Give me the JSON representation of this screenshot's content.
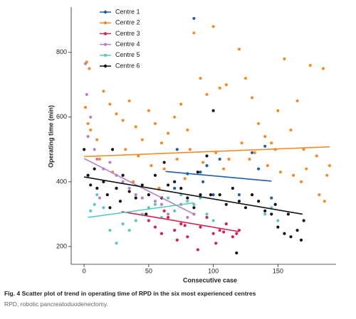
{
  "chart_data": {
    "type": "scatter",
    "x_label": "Consecutive case",
    "y_label": "Operating time (min)",
    "xlim": [
      -10,
      195
    ],
    "ylim": [
      145,
      940
    ],
    "xticks": [
      0,
      50,
      100,
      150
    ],
    "yticks": [
      200,
      400,
      600,
      800
    ],
    "legend": "top-left",
    "series": [
      {
        "name": "Centre 1",
        "color": "#1f5fa8",
        "x": [
          85,
          72,
          80,
          90,
          92,
          100,
          105,
          130,
          140,
          135,
          120,
          145,
          70,
          95
        ],
        "values": [
          905,
          500,
          425,
          430,
          400,
          360,
          470,
          490,
          510,
          440,
          360,
          350,
          380,
          450
        ],
        "trend_x": [
          63,
          145
        ],
        "trend_y": [
          432,
          402
        ]
      },
      {
        "name": "Centre 2",
        "color": "#f28c28",
        "x": [
          2,
          4,
          1,
          3,
          5,
          10,
          15,
          20,
          25,
          30,
          35,
          40,
          45,
          50,
          55,
          60,
          65,
          70,
          75,
          80,
          85,
          90,
          95,
          100,
          105,
          110,
          120,
          125,
          130,
          135,
          140,
          145,
          150,
          155,
          160,
          165,
          170,
          175,
          180,
          185,
          188,
          190,
          12,
          22,
          32,
          42,
          52,
          62,
          72,
          82,
          92,
          102,
          112,
          122,
          132,
          142,
          152,
          162,
          172,
          182,
          186,
          38,
          58,
          78,
          108,
          128,
          148,
          168
        ],
        "values": [
          770,
          750,
          630,
          580,
          560,
          530,
          680,
          640,
          610,
          590,
          650,
          570,
          530,
          620,
          580,
          520,
          550,
          600,
          640,
          560,
          860,
          720,
          670,
          880,
          690,
          700,
          810,
          720,
          660,
          580,
          540,
          520,
          620,
          780,
          560,
          650,
          500,
          760,
          480,
          750,
          420,
          450,
          470,
          430,
          500,
          480,
          450,
          440,
          470,
          500,
          460,
          490,
          470,
          520,
          490,
          450,
          430,
          420,
          440,
          360,
          340,
          400,
          380,
          410,
          440,
          470,
          500,
          400
        ],
        "trend_x": [
          0,
          190
        ],
        "trend_y": [
          478,
          508
        ]
      },
      {
        "name": "Centre 3",
        "color": "#d6204f",
        "x": [
          50,
          55,
          60,
          65,
          70,
          75,
          80,
          85,
          90,
          95,
          100,
          105,
          110,
          115,
          120,
          118,
          72,
          88,
          62,
          102,
          108,
          78
        ],
        "values": [
          280,
          260,
          240,
          290,
          250,
          270,
          230,
          300,
          260,
          290,
          240,
          250,
          270,
          230,
          250,
          240,
          220,
          190,
          310,
          210,
          245,
          265
        ],
        "trend_x": [
          29,
          120
        ],
        "trend_y": [
          308,
          246
        ]
      },
      {
        "name": "Centre 4",
        "color": "#b57fc8",
        "x": [
          1,
          2,
          5,
          3,
          8,
          10,
          15,
          20,
          25,
          30,
          35,
          40,
          45,
          55,
          60,
          65,
          75,
          80,
          85,
          12
        ],
        "values": [
          765,
          670,
          600,
          540,
          500,
          470,
          440,
          460,
          420,
          400,
          380,
          360,
          350,
          340,
          330,
          300,
          330,
          290,
          300,
          350
        ],
        "trend_x": [
          0,
          85
        ],
        "trend_y": [
          472,
          300
        ]
      },
      {
        "name": "Centre 5",
        "color": "#5bc8c0",
        "x": [
          5,
          8,
          10,
          15,
          20,
          25,
          30,
          35,
          40,
          45,
          50,
          55,
          60,
          65,
          70,
          75,
          80,
          85,
          90,
          95,
          100,
          140,
          145,
          150,
          130
        ],
        "values": [
          310,
          330,
          360,
          320,
          250,
          210,
          270,
          250,
          280,
          300,
          320,
          330,
          290,
          350,
          310,
          360,
          340,
          330,
          350,
          300,
          280,
          300,
          320,
          280,
          360
        ],
        "trend_x": [
          3,
          85
        ],
        "trend_y": [
          290,
          335
        ]
      },
      {
        "name": "Centre 6",
        "color": "#111111",
        "x": [
          0,
          3,
          5,
          8,
          10,
          15,
          18,
          20,
          25,
          28,
          30,
          35,
          40,
          45,
          50,
          55,
          60,
          65,
          70,
          75,
          80,
          85,
          90,
          95,
          100,
          105,
          110,
          115,
          120,
          125,
          130,
          135,
          140,
          145,
          150,
          155,
          160,
          165,
          170,
          168,
          158,
          148,
          118,
          98,
          48,
          22,
          62,
          88
        ],
        "values": [
          500,
          420,
          390,
          440,
          380,
          400,
          360,
          320,
          380,
          340,
          420,
          370,
          350,
          390,
          360,
          420,
          350,
          390,
          400,
          380,
          350,
          320,
          360,
          480,
          620,
          360,
          330,
          380,
          340,
          320,
          360,
          340,
          310,
          300,
          260,
          240,
          230,
          250,
          280,
          220,
          300,
          330,
          180,
          360,
          300,
          500,
          460,
          430
        ],
        "trend_x": [
          0,
          169
        ],
        "trend_y": [
          415,
          300
        ]
      }
    ]
  },
  "caption": {
    "label": "Fig. 4",
    "text": "Scatter plot of trend in operating time of RPD in the six most experienced centres",
    "note": "RPD, robotic pancreatoduodenectomy."
  }
}
